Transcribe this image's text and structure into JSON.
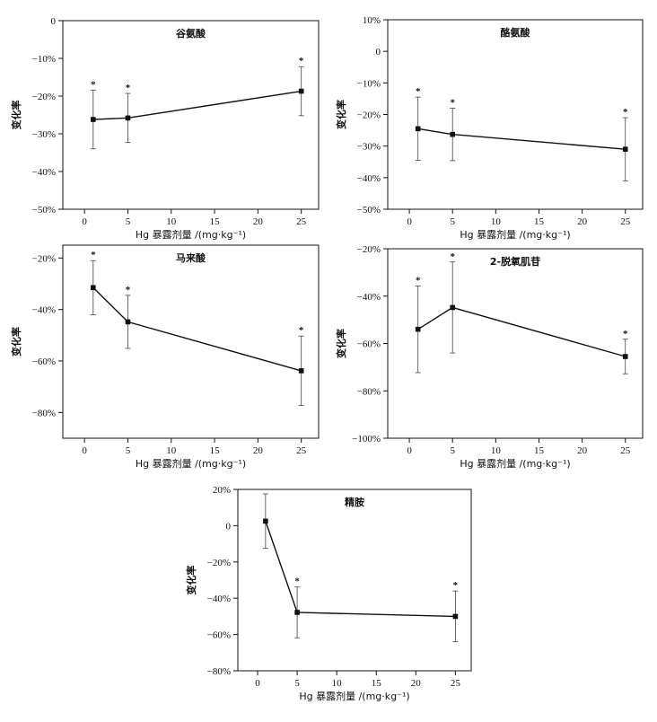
{
  "chart_data": [
    {
      "type": "line",
      "title": "谷氨酸",
      "xlabel": "Hg 暴露剂量 /(mg·kg⁻¹)",
      "ylabel": "变化率",
      "x": [
        1,
        5,
        25
      ],
      "values": [
        -26.2,
        -25.8,
        -18.7
      ],
      "errors": [
        7.8,
        6.5,
        6.5
      ],
      "significance": [
        "*",
        "*",
        "*"
      ],
      "xlim": [
        -2.5,
        27
      ],
      "xticks": [
        0,
        5,
        10,
        15,
        20,
        25
      ],
      "xtick_labels": [
        "0",
        "5",
        "10",
        "15",
        "20",
        "25"
      ],
      "ylim": [
        -50,
        0
      ],
      "yticks": [
        -50,
        -40,
        -30,
        -20,
        -10,
        0
      ],
      "ytick_labels": [
        "−50%",
        "−40%",
        "−30%",
        "−20%",
        "−10%",
        "0"
      ]
    },
    {
      "type": "line",
      "title": "酪氨酸",
      "xlabel": "Hg 暴露剂量 /(mg·kg⁻¹)",
      "ylabel": "变化率",
      "x": [
        1,
        5,
        25
      ],
      "values": [
        -24.5,
        -26.3,
        -31.0
      ],
      "errors": [
        10.0,
        8.3,
        10.0
      ],
      "significance": [
        "*",
        "*",
        "*"
      ],
      "xlim": [
        -2.5,
        27
      ],
      "xticks": [
        0,
        5,
        10,
        15,
        20,
        25
      ],
      "xtick_labels": [
        "0",
        "5",
        "10",
        "15",
        "20",
        "25"
      ],
      "ylim": [
        -50,
        10
      ],
      "yticks": [
        -50,
        -40,
        -30,
        -20,
        -10,
        0,
        10
      ],
      "ytick_labels": [
        "−50%",
        "−40%",
        "−30%",
        "−20%",
        "−10%",
        "0",
        "10%"
      ]
    },
    {
      "type": "line",
      "title": "马来酸",
      "xlabel": "Hg 暴露剂量 /(mg·kg⁻¹)",
      "ylabel": "变化率",
      "x": [
        1,
        5,
        25
      ],
      "values": [
        -31.5,
        -44.8,
        -63.8
      ],
      "errors": [
        10.5,
        10.3,
        13.5
      ],
      "significance": [
        "*",
        "*",
        "*"
      ],
      "xlim": [
        -2.5,
        27
      ],
      "xticks": [
        0,
        5,
        10,
        15,
        20,
        25
      ],
      "xtick_labels": [
        "0",
        "5",
        "10",
        "15",
        "20",
        "25"
      ],
      "ylim": [
        -90,
        -15
      ],
      "yticks": [
        -80,
        -60,
        -40,
        -20
      ],
      "ytick_labels": [
        "−80%",
        "−60%",
        "−40%",
        "−20%"
      ]
    },
    {
      "type": "line",
      "title": "2-脱氧肌苷",
      "xlabel": "Hg 暴露剂量 /(mg·kg⁻¹)",
      "ylabel": "变化率",
      "x": [
        1,
        5,
        25
      ],
      "values": [
        -54.0,
        -44.8,
        -65.5
      ],
      "errors": [
        18.3,
        19.2,
        7.3
      ],
      "significance": [
        "*",
        "*",
        "*"
      ],
      "xlim": [
        -2.5,
        27
      ],
      "xticks": [
        0,
        5,
        10,
        15,
        20,
        25
      ],
      "xtick_labels": [
        "0",
        "5",
        "10",
        "15",
        "20",
        "25"
      ],
      "ylim": [
        -100,
        -20
      ],
      "yticks": [
        -100,
        -80,
        -60,
        -40,
        -20
      ],
      "ytick_labels": [
        "−100%",
        "−80%",
        "−60%",
        "−40%",
        "−20%"
      ]
    },
    {
      "type": "line",
      "title": "精胺",
      "xlabel": "Hg 暴露剂量 /(mg·kg⁻¹)",
      "ylabel": "变化率",
      "x": [
        1,
        5,
        25
      ],
      "values": [
        2.5,
        -47.8,
        -50.0
      ],
      "errors": [
        15.0,
        14.0,
        14.0
      ],
      "significance": [
        "",
        "*",
        "*"
      ],
      "xlim": [
        -2.5,
        27
      ],
      "xticks": [
        0,
        5,
        10,
        15,
        20,
        25
      ],
      "xtick_labels": [
        "0",
        "5",
        "10",
        "15",
        "20",
        "25"
      ],
      "ylim": [
        -80,
        20
      ],
      "yticks": [
        -80,
        -60,
        -40,
        -20,
        0,
        20
      ],
      "ytick_labels": [
        "−80%",
        "−60%",
        "−40%",
        "−20%",
        "0",
        "20%"
      ]
    }
  ]
}
